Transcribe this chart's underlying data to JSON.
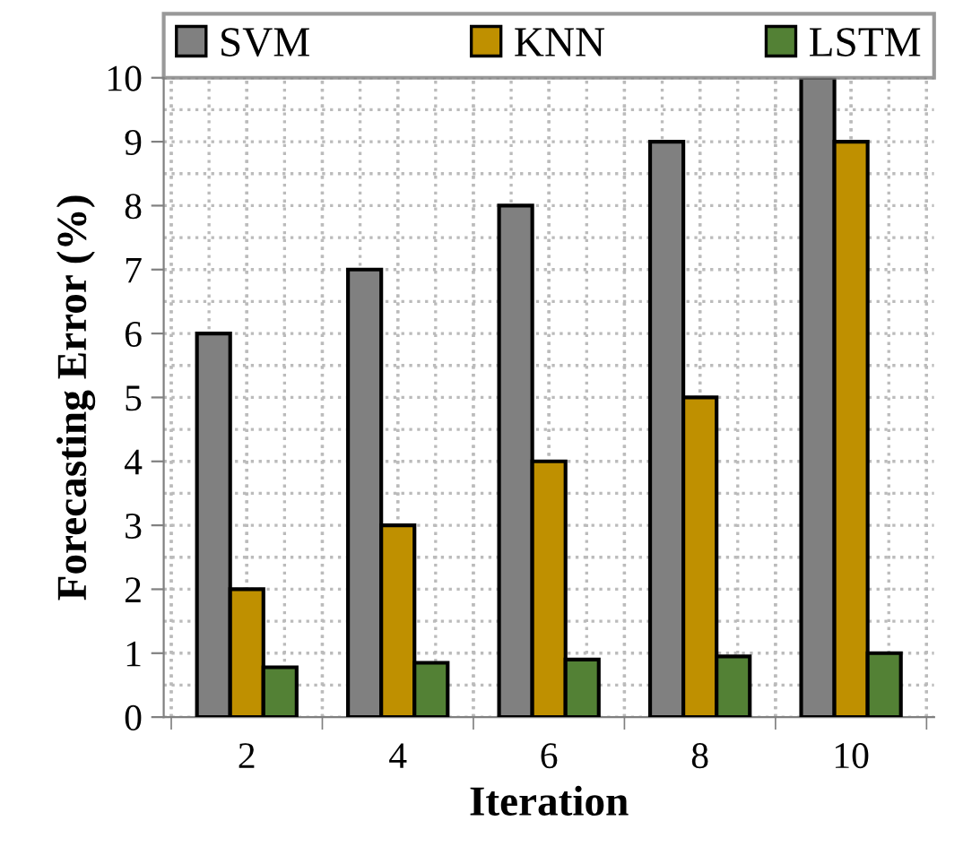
{
  "chart_data": {
    "type": "bar",
    "xlabel": "Iteration",
    "ylabel": "Forecasting Error (%)",
    "categories": [
      "2",
      "4",
      "6",
      "8",
      "10"
    ],
    "series": [
      {
        "name": "SVM",
        "color": "#808080",
        "values": [
          6,
          7,
          8,
          9,
          10
        ]
      },
      {
        "name": "KNN",
        "color": "#bf9000",
        "values": [
          2,
          3,
          4,
          5,
          9
        ]
      },
      {
        "name": "LSTM",
        "color": "#538135",
        "values": [
          0.78,
          0.85,
          0.9,
          0.95,
          1.0
        ]
      }
    ],
    "ylim": [
      0,
      10
    ],
    "yticks": [
      0,
      1,
      2,
      3,
      4,
      5,
      6,
      7,
      8,
      9,
      10
    ],
    "grid": true,
    "legend": "top"
  }
}
